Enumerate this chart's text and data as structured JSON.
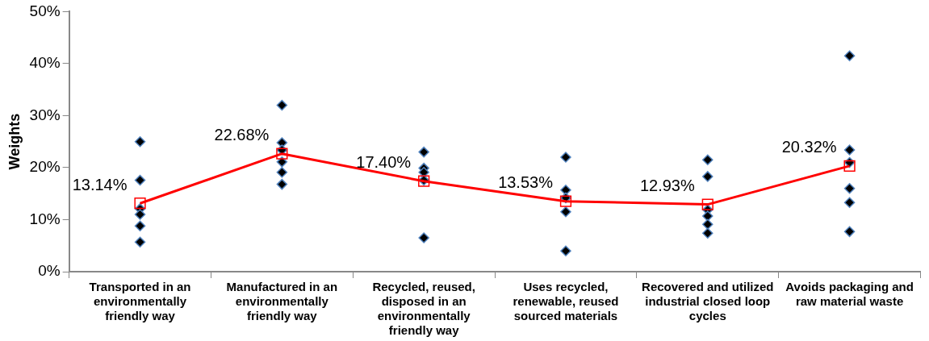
{
  "chart_data": {
    "type": "line",
    "ylabel": "Weights",
    "categories": [
      "Transported in an environmentally friendly way",
      "Manufactured in an environmentally friendly way",
      "Recycled, reused, disposed in an environmentally friendly way",
      "Uses recycled, renewable, reused sourced materials",
      "Recovered and utilized industrial closed loop cycles",
      "Avoids packaging and raw material waste"
    ],
    "series": [
      {
        "type": "scatter",
        "color": "#000000",
        "marker": "diamond",
        "x": [
          "Transported in an environmentally friendly way",
          "Transported in an environmentally friendly way",
          "Transported in an environmentally friendly way",
          "Transported in an environmentally friendly way",
          "Transported in an environmentally friendly way",
          "Transported in an environmentally friendly way",
          "Manufactured in an environmentally friendly way",
          "Manufactured in an environmentally friendly way",
          "Manufactured in an environmentally friendly way",
          "Manufactured in an environmentally friendly way",
          "Manufactured in an environmentally friendly way",
          "Manufactured in an environmentally friendly way",
          "Recycled, reused, disposed in an environmentally friendly way",
          "Recycled, reused, disposed in an environmentally friendly way",
          "Recycled, reused, disposed in an environmentally friendly way",
          "Recycled, reused, disposed in an environmentally friendly way",
          "Recycled, reused, disposed in an environmentally friendly way",
          "Uses recycled, renewable, reused sourced materials",
          "Uses recycled, renewable, reused sourced materials",
          "Uses recycled, renewable, reused sourced materials",
          "Uses recycled, renewable, reused sourced materials",
          "Uses recycled, renewable, reused sourced materials",
          "Recovered and utilized industrial closed loop cycles",
          "Recovered and utilized industrial closed loop cycles",
          "Recovered and utilized industrial closed loop cycles",
          "Recovered and utilized industrial closed loop cycles",
          "Recovered and utilized industrial closed loop cycles",
          "Recovered and utilized industrial closed loop cycles",
          "Avoids packaging and raw material waste",
          "Avoids packaging and raw material waste",
          "Avoids packaging and raw material waste",
          "Avoids packaging and raw material waste",
          "Avoids packaging and raw material waste",
          "Avoids packaging and raw material waste"
        ],
        "values": [
          25.0,
          17.6,
          12.1,
          11.0,
          8.8,
          5.7,
          32.0,
          24.8,
          23.4,
          21.1,
          19.1,
          16.8,
          23.0,
          19.9,
          19.1,
          17.6,
          6.5,
          22.0,
          15.7,
          14.2,
          11.5,
          4.0,
          21.5,
          18.3,
          11.9,
          10.7,
          9.1,
          7.4,
          41.5,
          23.4,
          21.0,
          16.0,
          13.3,
          7.7
        ]
      },
      {
        "color": "#ff0000",
        "marker": "square",
        "line_style": "solid",
        "values": [
          13.14,
          22.68,
          17.4,
          13.53,
          12.93,
          20.32
        ],
        "value_labels": [
          "13.14%",
          "22.68%",
          "17.40%",
          "13.53%",
          "12.93%",
          "20.32%"
        ]
      }
    ],
    "ylim": [
      0,
      50
    ],
    "yticks": [
      {
        "value": 0,
        "label": "0%"
      },
      {
        "value": 10,
        "label": "10%"
      },
      {
        "value": 20,
        "label": "20%"
      },
      {
        "value": 30,
        "label": "30%"
      },
      {
        "value": 40,
        "label": "40%"
      },
      {
        "value": 50,
        "label": "50%"
      }
    ],
    "grid": false,
    "legend": false
  }
}
